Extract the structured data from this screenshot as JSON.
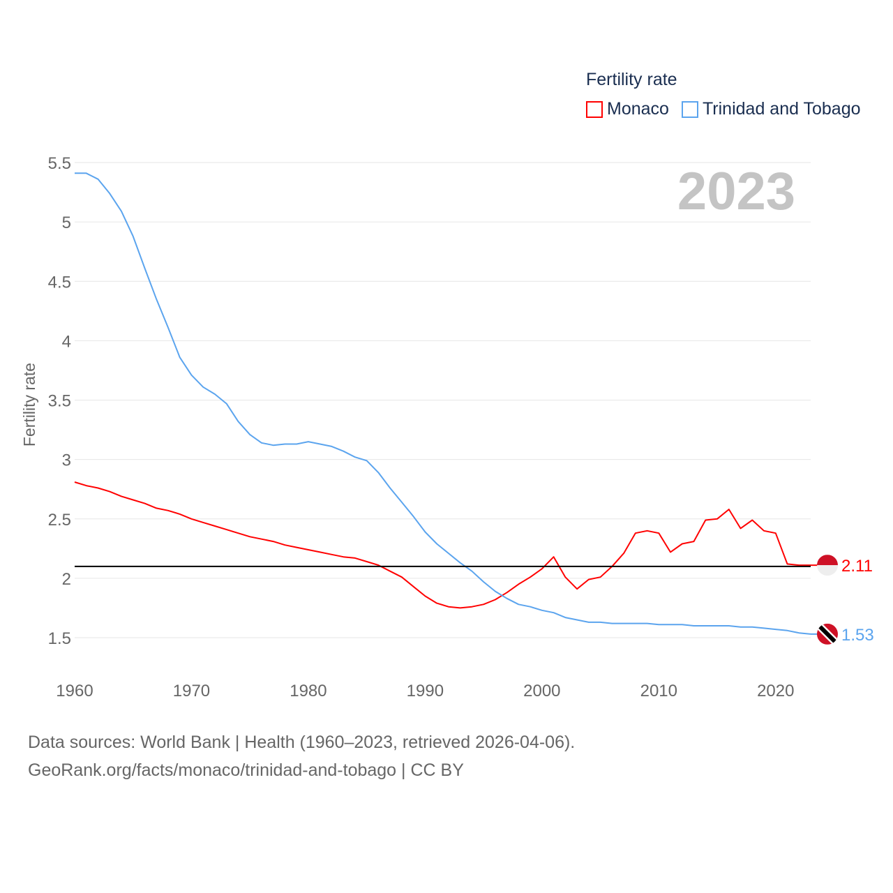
{
  "chart_data": {
    "type": "line",
    "title": "Fertility rate",
    "year_label": "2023",
    "ylabel": "Fertility rate",
    "xlabel": "",
    "xlim": [
      1960,
      2023
    ],
    "ylim": [
      1.5,
      5.5
    ],
    "yticks": [
      1.5,
      2,
      2.5,
      3,
      3.5,
      4,
      4.5,
      5,
      5.5
    ],
    "ytick_labels": [
      "1.5",
      "2",
      "2.5",
      "3",
      "3.5",
      "4",
      "4.5",
      "5",
      "5.5"
    ],
    "xticks": [
      1960,
      1970,
      1980,
      1990,
      2000,
      2010,
      2020
    ],
    "xtick_labels": [
      "1960",
      "1970",
      "1980",
      "1990",
      "2000",
      "2010",
      "2020"
    ],
    "grid": true,
    "legend_position": "top-right",
    "reference_line": {
      "value": 2.1,
      "color": "#000000"
    },
    "x": [
      1960,
      1961,
      1962,
      1963,
      1964,
      1965,
      1966,
      1967,
      1968,
      1969,
      1970,
      1971,
      1972,
      1973,
      1974,
      1975,
      1976,
      1977,
      1978,
      1979,
      1980,
      1981,
      1982,
      1983,
      1984,
      1985,
      1986,
      1987,
      1988,
      1989,
      1990,
      1991,
      1992,
      1993,
      1994,
      1995,
      1996,
      1997,
      1998,
      1999,
      2000,
      2001,
      2002,
      2003,
      2004,
      2005,
      2006,
      2007,
      2008,
      2009,
      2010,
      2011,
      2012,
      2013,
      2014,
      2015,
      2016,
      2017,
      2018,
      2019,
      2020,
      2021,
      2022,
      2023
    ],
    "series": [
      {
        "name": "Monaco",
        "color": "#ff0000",
        "end_label": "2.11",
        "flag": "monaco",
        "values": [
          2.81,
          2.78,
          2.76,
          2.73,
          2.69,
          2.66,
          2.63,
          2.59,
          2.57,
          2.54,
          2.5,
          2.47,
          2.44,
          2.41,
          2.38,
          2.35,
          2.33,
          2.31,
          2.28,
          2.26,
          2.24,
          2.22,
          2.2,
          2.18,
          2.17,
          2.14,
          2.11,
          2.06,
          2.01,
          1.93,
          1.85,
          1.79,
          1.76,
          1.75,
          1.76,
          1.78,
          1.82,
          1.88,
          1.95,
          2.01,
          2.08,
          2.18,
          2.01,
          1.91,
          1.99,
          2.01,
          2.1,
          2.21,
          2.38,
          2.4,
          2.38,
          2.22,
          2.29,
          2.31,
          2.49,
          2.5,
          2.58,
          2.42,
          2.49,
          2.4,
          2.38,
          2.12,
          2.11,
          2.11
        ]
      },
      {
        "name": "Trinidad and Tobago",
        "color": "#5ba4ee",
        "end_label": "1.53",
        "flag": "trinidad-and-tobago",
        "values": [
          5.41,
          5.41,
          5.36,
          5.24,
          5.09,
          4.88,
          4.61,
          4.35,
          4.11,
          3.86,
          3.71,
          3.61,
          3.55,
          3.47,
          3.32,
          3.21,
          3.14,
          3.12,
          3.13,
          3.13,
          3.15,
          3.13,
          3.11,
          3.07,
          3.02,
          2.99,
          2.89,
          2.76,
          2.64,
          2.52,
          2.39,
          2.29,
          2.21,
          2.13,
          2.06,
          1.97,
          1.89,
          1.83,
          1.78,
          1.76,
          1.73,
          1.71,
          1.67,
          1.65,
          1.63,
          1.63,
          1.62,
          1.62,
          1.62,
          1.62,
          1.61,
          1.61,
          1.61,
          1.6,
          1.6,
          1.6,
          1.6,
          1.59,
          1.59,
          1.58,
          1.57,
          1.56,
          1.54,
          1.53
        ]
      }
    ]
  },
  "legend": {
    "title": "Fertility rate",
    "items": [
      "Monaco",
      "Trinidad and Tobago"
    ]
  },
  "footer": {
    "line1": "Data sources: World Bank | Health (1960–2023, retrieved 2026-04-06).",
    "line2": "GeoRank.org/facts/monaco/trinidad-and-tobago | CC BY"
  }
}
